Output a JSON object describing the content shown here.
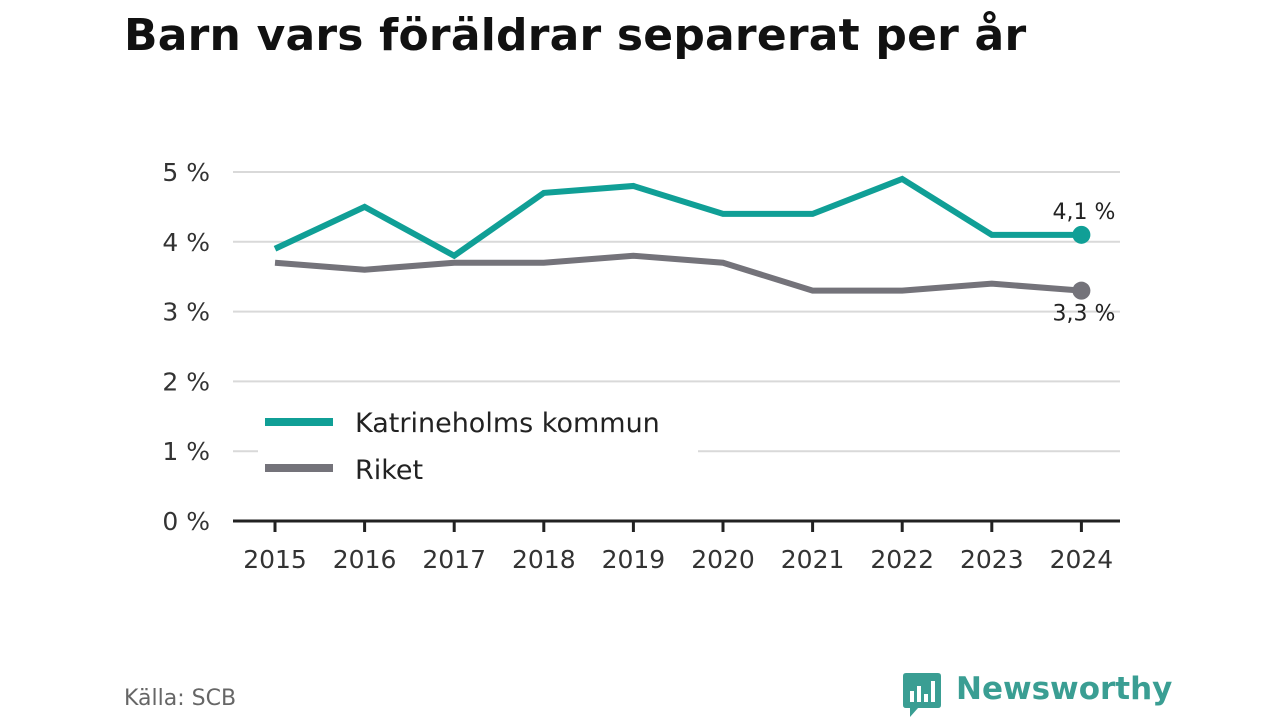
{
  "title": "Barn vars föräldrar separerat per år",
  "source": "Källa: SCB",
  "brand": {
    "name": "Newsworthy",
    "icon": "bar-chart-speech-bubble-icon",
    "color": "#3a9e93"
  },
  "chart_data": {
    "type": "line",
    "title": "Barn vars föräldrar separerat per år",
    "x": [
      "2015",
      "2016",
      "2017",
      "2018",
      "2019",
      "2020",
      "2021",
      "2022",
      "2023",
      "2024"
    ],
    "series": [
      {
        "name": "Katrineholms kommun",
        "color": "#109f96",
        "values": [
          3.9,
          4.5,
          3.8,
          4.7,
          4.8,
          4.4,
          4.4,
          4.9,
          4.1,
          4.1
        ],
        "end_label": "4,1 %"
      },
      {
        "name": "Riket",
        "color": "#74737a",
        "values": [
          3.7,
          3.6,
          3.7,
          3.7,
          3.8,
          3.7,
          3.3,
          3.3,
          3.4,
          3.3
        ],
        "end_label": "3,3 %"
      }
    ],
    "yticks": [
      0,
      1,
      2,
      3,
      4,
      5
    ],
    "ytick_labels": [
      "0 %",
      "1 %",
      "2 %",
      "3 %",
      "4 %",
      "5 %"
    ],
    "ylim": [
      0,
      5
    ],
    "grid": true,
    "legend_position": "bottom-left"
  }
}
